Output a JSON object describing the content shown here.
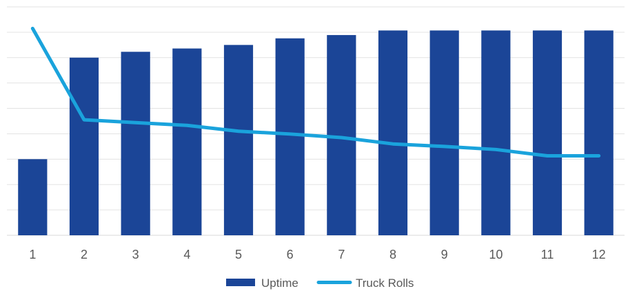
{
  "chart_data": {
    "type": "bar",
    "categories": [
      "1",
      "2",
      "3",
      "4",
      "5",
      "6",
      "7",
      "8",
      "9",
      "10",
      "11",
      "12"
    ],
    "series": [
      {
        "name": "Uptime",
        "type": "bar",
        "color": "#1b4597",
        "values": [
          30,
          70,
          72.3,
          73.6,
          75,
          77.6,
          78.9,
          80.7,
          80.7,
          80.7,
          80.7,
          80.7
        ]
      },
      {
        "name": "Truck Rolls",
        "type": "line",
        "color": "#1aa3dc",
        "values": [
          81.5,
          45.5,
          44.4,
          43.3,
          41,
          39.9,
          38.5,
          36,
          35,
          33.8,
          31.3,
          31.3
        ]
      }
    ],
    "ylim": [
      0,
      90
    ],
    "grid": true,
    "legend_position": "bottom"
  }
}
